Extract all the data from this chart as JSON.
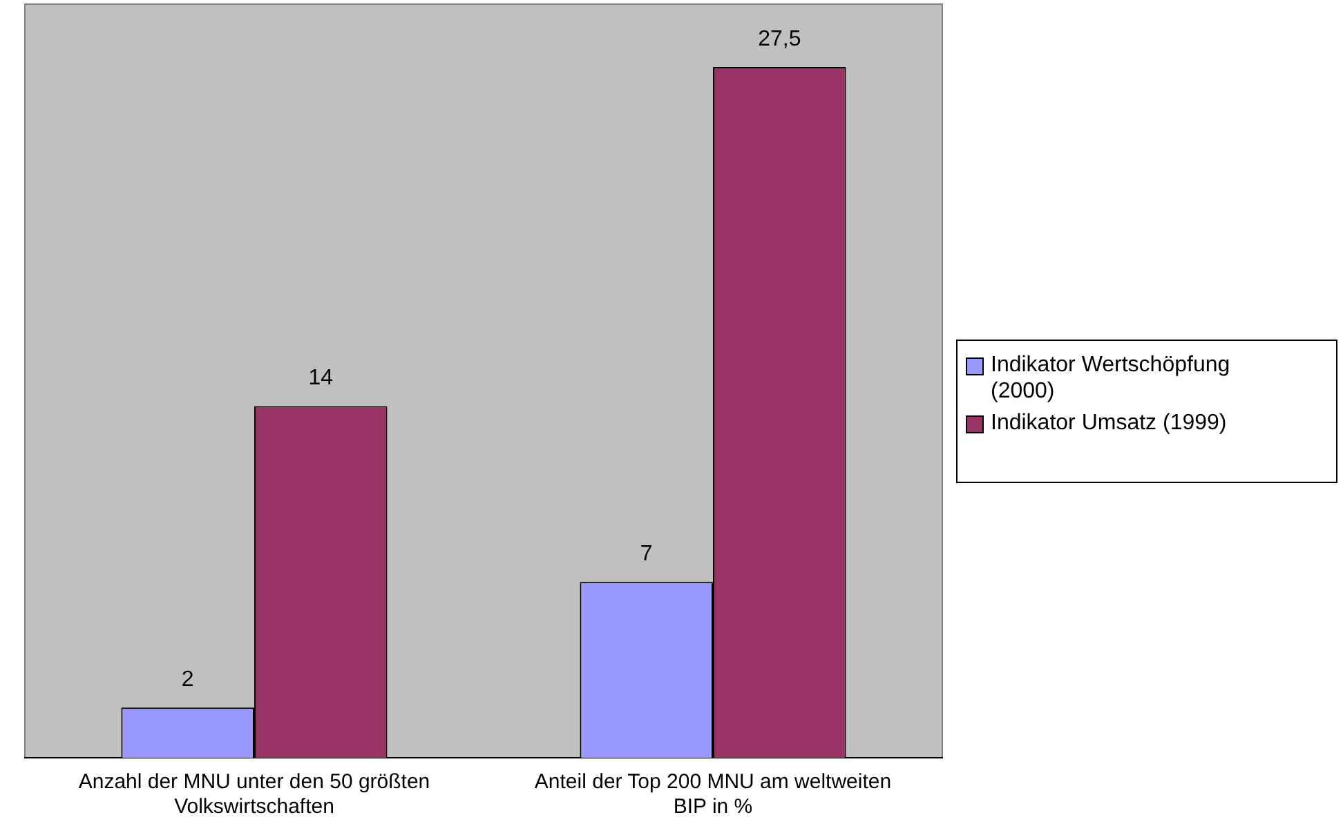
{
  "chart_data": {
    "type": "bar",
    "relative": false,
    "categories": [
      "Anzahl der MNU unter den 50 größten Volkswirtschaften",
      "Anteil der Top 200 MNU am weltweiten BIP in %"
    ],
    "series": [
      {
        "name": "Indikator Wertschöpfung (2000)",
        "color": "#9999ff",
        "values": [
          2,
          7
        ],
        "value_labels": [
          "2",
          "7"
        ]
      },
      {
        "name": "Indikator Umsatz (1999)",
        "color": "#993366",
        "values": [
          14,
          27.5
        ],
        "value_labels": [
          "14",
          "27,5"
        ]
      }
    ],
    "grid": false,
    "legend": "right"
  }
}
